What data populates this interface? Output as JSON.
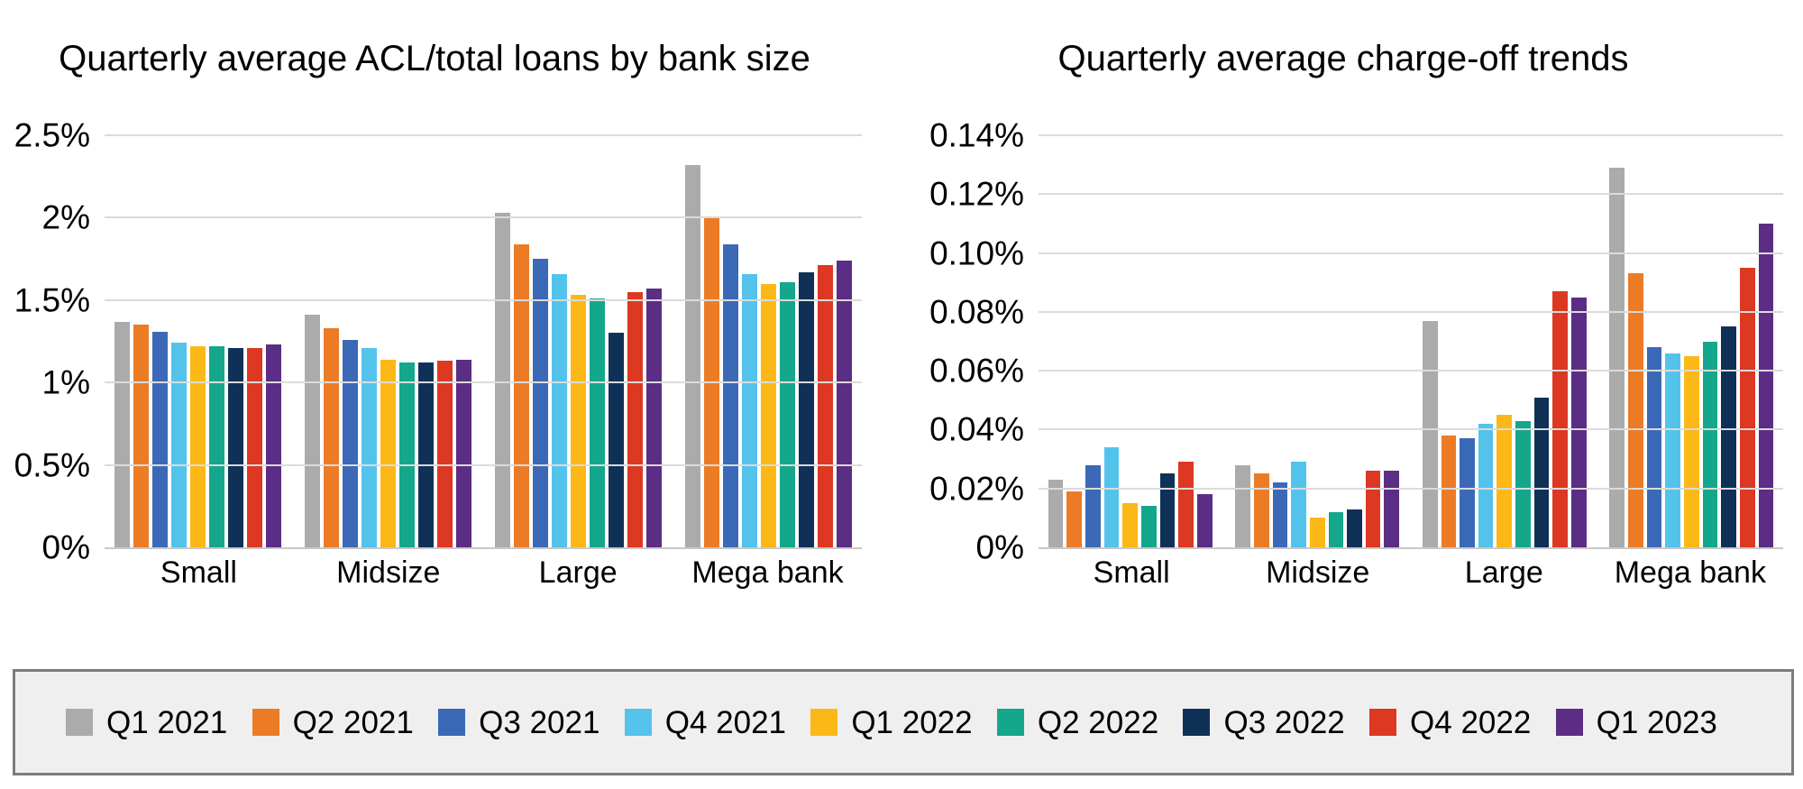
{
  "chart_data": [
    {
      "type": "bar",
      "title": "Quarterly average ACL/total loans by bank size",
      "categories": [
        "Small",
        "Midsize",
        "Large",
        "Mega bank"
      ],
      "ylim": [
        0,
        2.5
      ],
      "grid": true,
      "legend_position": "shared-bottom",
      "y_ticks": [
        {
          "v": 2.5,
          "label": "2.5%"
        },
        {
          "v": 2.0,
          "label": "2%"
        },
        {
          "v": 1.5,
          "label": "1.5%"
        },
        {
          "v": 1.0,
          "label": "1%"
        },
        {
          "v": 0.5,
          "label": "0.5%"
        },
        {
          "v": 0.0,
          "label": "0%"
        }
      ],
      "series": [
        {
          "name": "Q1 2021",
          "color": "#ABABAB",
          "values": [
            1.37,
            1.41,
            2.03,
            2.32
          ]
        },
        {
          "name": "Q2 2021",
          "color": "#EC7B26",
          "values": [
            1.35,
            1.33,
            1.84,
            2.01
          ]
        },
        {
          "name": "Q3 2021",
          "color": "#3C69B7",
          "values": [
            1.31,
            1.26,
            1.75,
            1.84
          ]
        },
        {
          "name": "Q4 2021",
          "color": "#54C3EC",
          "values": [
            1.24,
            1.21,
            1.66,
            1.66
          ]
        },
        {
          "name": "Q1 2022",
          "color": "#FCB817",
          "values": [
            1.22,
            1.14,
            1.53,
            1.6
          ]
        },
        {
          "name": "Q2 2022",
          "color": "#15A78C",
          "values": [
            1.22,
            1.12,
            1.51,
            1.61
          ]
        },
        {
          "name": "Q3 2022",
          "color": "#0F3158",
          "values": [
            1.21,
            1.12,
            1.3,
            1.67
          ]
        },
        {
          "name": "Q4 2022",
          "color": "#DC3822",
          "values": [
            1.21,
            1.13,
            1.55,
            1.71
          ]
        },
        {
          "name": "Q1 2023",
          "color": "#5C2D84",
          "values": [
            1.23,
            1.14,
            1.57,
            1.74
          ]
        }
      ]
    },
    {
      "type": "bar",
      "title": "Quarterly average charge-off trends",
      "categories": [
        "Small",
        "Midsize",
        "Large",
        "Mega bank"
      ],
      "ylim": [
        0,
        0.14
      ],
      "grid": true,
      "legend_position": "shared-bottom",
      "y_ticks": [
        {
          "v": 0.14,
          "label": "0.14%"
        },
        {
          "v": 0.12,
          "label": "0.12%"
        },
        {
          "v": 0.1,
          "label": "0.10%"
        },
        {
          "v": 0.08,
          "label": "0.08%"
        },
        {
          "v": 0.06,
          "label": "0.06%"
        },
        {
          "v": 0.04,
          "label": "0.04%"
        },
        {
          "v": 0.02,
          "label": "0.02%"
        },
        {
          "v": 0.0,
          "label": "0%"
        }
      ],
      "series": [
        {
          "name": "Q1 2021",
          "color": "#ABABAB",
          "values": [
            0.023,
            0.028,
            0.077,
            0.129
          ]
        },
        {
          "name": "Q2 2021",
          "color": "#EC7B26",
          "values": [
            0.019,
            0.025,
            0.038,
            0.093
          ]
        },
        {
          "name": "Q3 2021",
          "color": "#3C69B7",
          "values": [
            0.028,
            0.022,
            0.037,
            0.068
          ]
        },
        {
          "name": "Q4 2021",
          "color": "#54C3EC",
          "values": [
            0.034,
            0.029,
            0.042,
            0.066
          ]
        },
        {
          "name": "Q1 2022",
          "color": "#FCB817",
          "values": [
            0.015,
            0.01,
            0.045,
            0.065
          ]
        },
        {
          "name": "Q2 2022",
          "color": "#15A78C",
          "values": [
            0.014,
            0.012,
            0.043,
            0.07
          ]
        },
        {
          "name": "Q3 2022",
          "color": "#0F3158",
          "values": [
            0.025,
            0.013,
            0.051,
            0.075
          ]
        },
        {
          "name": "Q4 2022",
          "color": "#DC3822",
          "values": [
            0.029,
            0.026,
            0.087,
            0.095
          ]
        },
        {
          "name": "Q1 2023",
          "color": "#5C2D84",
          "values": [
            0.018,
            0.026,
            0.085,
            0.11
          ]
        }
      ]
    }
  ],
  "style": {
    "gridline_color": "#DBDBDB",
    "axis_line_color": "#C9C9C9",
    "legend_background": "#F0EFF0",
    "legend_border_color": "#7C7C7C"
  }
}
